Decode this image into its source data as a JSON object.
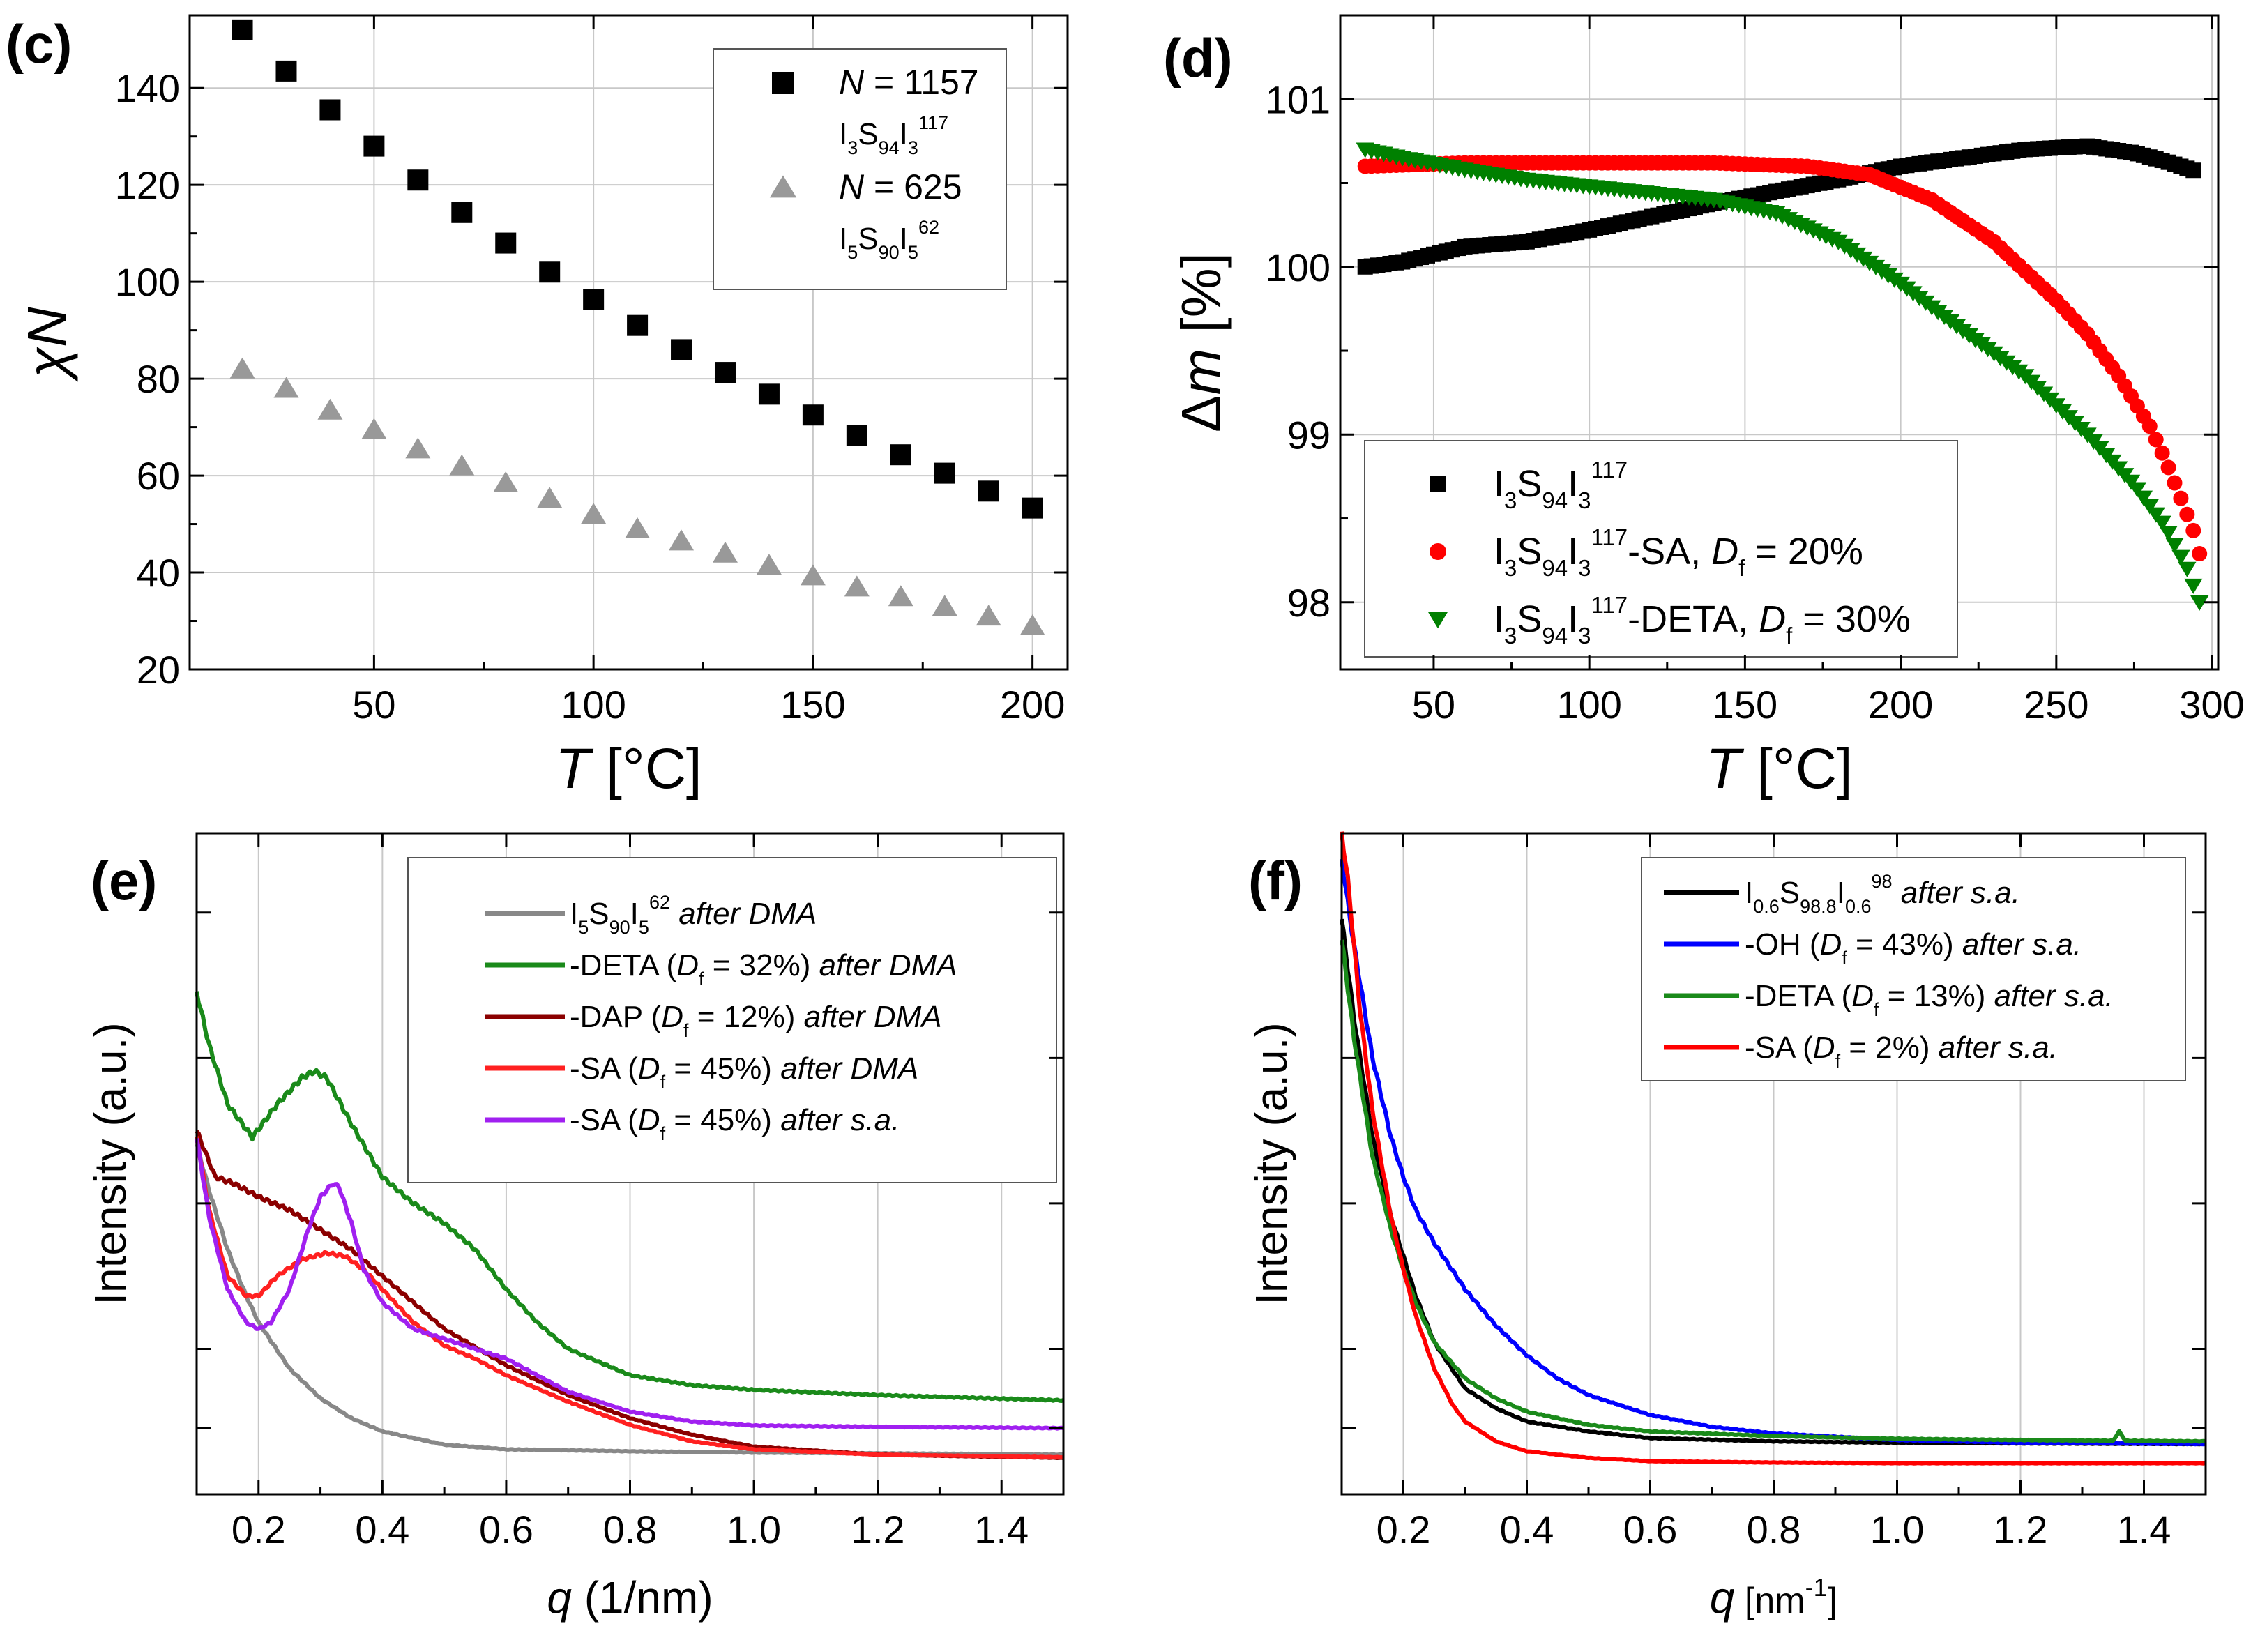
{
  "chart_data": [
    {
      "panel": "(c)",
      "type": "scatter",
      "xlabel": "T [°C]",
      "ylabel": "χN",
      "xlim": [
        8,
        208
      ],
      "ylim": [
        20,
        155
      ],
      "xticks": [
        50,
        100,
        150,
        200
      ],
      "yticks": [
        20,
        40,
        60,
        80,
        100,
        120,
        140
      ],
      "grid": true,
      "legend_position": "top-right",
      "series": [
        {
          "name": "N = 1157",
          "sub": "I3S94I3 117",
          "marker": "square",
          "color": "#000000",
          "x": [
            20,
            30,
            40,
            50,
            60,
            70,
            80,
            90,
            100,
            110,
            120,
            130,
            140,
            150,
            160,
            170,
            180,
            190,
            200
          ],
          "y": [
            152,
            143.5,
            135.5,
            128,
            121,
            114.3,
            108,
            102,
            96.3,
            91,
            86,
            81.3,
            76.8,
            72.5,
            68.3,
            64.3,
            60.5,
            56.8,
            53.3
          ]
        },
        {
          "name": "N = 625",
          "sub": "I5S90I5 62",
          "marker": "triangle",
          "color": "#999999",
          "x": [
            20,
            30,
            40,
            50,
            60,
            70,
            80,
            90,
            100,
            110,
            120,
            130,
            140,
            150,
            160,
            170,
            180,
            190,
            200
          ],
          "y": [
            82,
            78,
            73.5,
            69.5,
            65.5,
            62,
            58.5,
            55.3,
            52,
            49,
            46.5,
            44,
            41.5,
            39.3,
            37,
            35,
            33,
            31,
            29
          ]
        }
      ],
      "legend": [
        {
          "label_parts": [
            "N",
            " = 1157"
          ],
          "chem": {
            "parts": [
              "I",
              "3",
              "S",
              "94",
              "I",
              "3"
            ],
            "sup": "117"
          }
        },
        {
          "label_parts": [
            "N",
            " = 625"
          ],
          "chem": {
            "parts": [
              "I",
              "5",
              "S",
              "90",
              "I",
              "5"
            ],
            "sup": "62"
          }
        }
      ]
    },
    {
      "panel": "(d)",
      "type": "scatter",
      "xlabel": "T [°C]",
      "ylabel": "Δm [%]",
      "xlim": [
        20,
        302
      ],
      "ylim": [
        97.6,
        101.5
      ],
      "xticks": [
        50,
        100,
        150,
        200,
        250,
        300
      ],
      "yticks": [
        98,
        99,
        100,
        101
      ],
      "grid": true,
      "legend_position": "bottom-left",
      "series": [
        {
          "name": "I3S94I3 117",
          "marker": "square",
          "color": "#000000",
          "x": [
            28,
            40,
            60,
            80,
            100,
            120,
            140,
            160,
            180,
            200,
            220,
            240,
            260,
            275,
            285,
            295
          ],
          "y": [
            100.0,
            100.03,
            100.12,
            100.15,
            100.22,
            100.3,
            100.38,
            100.45,
            100.52,
            100.6,
            100.65,
            100.7,
            100.72,
            100.68,
            100.63,
            100.57
          ]
        },
        {
          "name": "I3S94I3 117-SA, Df = 20%",
          "marker": "circle",
          "color": "#ff0000",
          "x": [
            28,
            60,
            100,
            140,
            170,
            190,
            210,
            230,
            250,
            260,
            270,
            280,
            285,
            290,
            295,
            297
          ],
          "y": [
            100.6,
            100.62,
            100.62,
            100.62,
            100.6,
            100.55,
            100.4,
            100.15,
            99.8,
            99.6,
            99.35,
            99.05,
            98.85,
            98.62,
            98.38,
            98.2
          ]
        },
        {
          "name": "I3S94I3 117-DETA, Df = 30%",
          "marker": "triangle-down",
          "color": "#008000",
          "x": [
            28,
            40,
            60,
            80,
            100,
            120,
            140,
            160,
            180,
            200,
            220,
            240,
            260,
            275,
            285,
            292,
            297
          ],
          "y": [
            100.7,
            100.65,
            100.58,
            100.52,
            100.48,
            100.44,
            100.4,
            100.32,
            100.15,
            99.9,
            99.62,
            99.35,
            99.0,
            98.7,
            98.45,
            98.2,
            97.95
          ]
        }
      ],
      "legend": [
        {
          "chem": {
            "parts": [
              "I",
              "3",
              "S",
              "94",
              "I",
              "3"
            ],
            "sup": "117"
          },
          "suffix": "",
          "df_label": "",
          "df_value": ""
        },
        {
          "chem": {
            "parts": [
              "I",
              "3",
              "S",
              "94",
              "I",
              "3"
            ],
            "sup": "117"
          },
          "suffix": "-SA, ",
          "df_label": "D",
          "df_sub": "f",
          "df_value": " = 20%"
        },
        {
          "chem": {
            "parts": [
              "I",
              "3",
              "S",
              "94",
              "I",
              "3"
            ],
            "sup": "117"
          },
          "suffix": "-DETA, ",
          "df_label": "D",
          "df_sub": "f",
          "df_value": " = 30%"
        }
      ]
    },
    {
      "panel": "(e)",
      "type": "line",
      "xlabel": "q (1/nm)",
      "ylabel": "Intensity (a.u.)",
      "xlim": [
        0.1,
        1.5
      ],
      "ylim": [
        0,
        10
      ],
      "ylog": true,
      "xticks": [
        0.2,
        0.4,
        0.6,
        0.8,
        1.0,
        1.2,
        1.4
      ],
      "xtick_labels": [
        "0.2",
        "0.4",
        "0.6",
        "0.8",
        "1.0",
        "1.2",
        "1.4"
      ],
      "grid": true,
      "legend_position": "top-right",
      "series": [
        {
          "name": "I5S90I5 62 after DMA",
          "color": "#888888",
          "x": [
            0.1,
            0.12,
            0.15,
            0.18,
            0.2,
            0.25,
            0.3,
            0.35,
            0.4,
            0.5,
            0.6,
            0.8,
            1.0,
            1.2,
            1.5
          ],
          "y": [
            5.3,
            4.6,
            3.7,
            3.0,
            2.6,
            1.9,
            1.45,
            1.15,
            0.95,
            0.75,
            0.68,
            0.65,
            0.63,
            0.62,
            0.6
          ]
        },
        {
          "name": "-DETA (Df = 32%) after DMA",
          "color": "#1a8a1a",
          "x": [
            0.1,
            0.12,
            0.15,
            0.19,
            0.23,
            0.27,
            0.29,
            0.31,
            0.35,
            0.4,
            0.45,
            0.5,
            0.55,
            0.6,
            0.65,
            0.7,
            0.8,
            0.9,
            1.0,
            1.2,
            1.5
          ],
          "y": [
            7.6,
            6.8,
            5.9,
            5.4,
            5.9,
            6.3,
            6.4,
            6.3,
            5.6,
            4.8,
            4.4,
            4.1,
            3.7,
            3.1,
            2.6,
            2.2,
            1.8,
            1.65,
            1.58,
            1.5,
            1.42
          ]
        },
        {
          "name": "-DAP (Df = 12%) after DMA",
          "color": "#8b0000",
          "x": [
            0.1,
            0.13,
            0.16,
            0.2,
            0.25,
            0.3,
            0.35,
            0.4,
            0.45,
            0.5,
            0.6,
            0.7,
            0.8,
            0.9,
            1.0,
            1.2,
            1.5
          ],
          "y": [
            5.5,
            4.8,
            4.7,
            4.5,
            4.3,
            4.0,
            3.7,
            3.3,
            2.9,
            2.5,
            1.95,
            1.5,
            1.15,
            0.9,
            0.72,
            0.6,
            0.55
          ]
        },
        {
          "name": "-SA (Df = 45%) after DMA",
          "color": "#ff2020",
          "x": [
            0.1,
            0.12,
            0.15,
            0.18,
            0.2,
            0.23,
            0.27,
            0.31,
            0.34,
            0.37,
            0.4,
            0.45,
            0.5,
            0.55,
            0.6,
            0.7,
            0.8,
            0.9,
            1.0,
            1.2,
            1.5
          ],
          "y": [
            5.4,
            4.3,
            3.3,
            3.0,
            3.0,
            3.3,
            3.55,
            3.65,
            3.6,
            3.4,
            3.1,
            2.6,
            2.25,
            2.05,
            1.8,
            1.4,
            1.05,
            0.8,
            0.68,
            0.6,
            0.56
          ]
        },
        {
          "name": "-SA (Df = 45%) after s.a.",
          "color": "#a020f0",
          "x": [
            0.1,
            0.12,
            0.15,
            0.18,
            0.2,
            0.22,
            0.25,
            0.28,
            0.3,
            0.32,
            0.33,
            0.35,
            0.37,
            0.4,
            0.45,
            0.5,
            0.55,
            0.6,
            0.65,
            0.7,
            0.8,
            0.9,
            1.0,
            1.2,
            1.5
          ],
          "y": [
            5.4,
            4.2,
            3.1,
            2.6,
            2.5,
            2.6,
            3.1,
            4.0,
            4.5,
            4.7,
            4.65,
            4.1,
            3.4,
            2.9,
            2.5,
            2.35,
            2.2,
            2.05,
            1.8,
            1.55,
            1.25,
            1.1,
            1.04,
            1.02,
            1.0
          ]
        }
      ],
      "legend": [
        {
          "chem": {
            "parts": [
              "I",
              "5",
              "S",
              "90",
              "I",
              "5"
            ],
            "sup": "62"
          },
          "prefix": "",
          "df": "",
          "note": " after DMA"
        },
        {
          "prefix": "-DETA (",
          "df_label": "D",
          "df_sub": "f",
          "df_value": " = 32%)",
          "note": " after DMA"
        },
        {
          "prefix": "-DAP (",
          "df_label": "D",
          "df_sub": "f",
          "df_value": " = 12%)",
          "note": " after DMA"
        },
        {
          "prefix": "-SA (",
          "df_label": "D",
          "df_sub": "f",
          "df_value": " = 45%)",
          "note": " after DMA"
        },
        {
          "prefix": "-SA (",
          "df_label": "D",
          "df_sub": "f",
          "df_value": " = 45%)",
          "note": " after s.a."
        }
      ]
    },
    {
      "panel": "(f)",
      "type": "line",
      "xlabel": "q [nm",
      "xlabel_sup": "-1",
      "xlabel_end": "]",
      "ylabel": "Intensity (a.u.)",
      "xlim": [
        0.1,
        1.5
      ],
      "ylim": [
        0,
        10
      ],
      "ylog": true,
      "xticks": [
        0.2,
        0.4,
        0.6,
        0.8,
        1.0,
        1.2,
        1.4
      ],
      "xtick_labels": [
        "0.2",
        "0.4",
        "0.6",
        "0.8",
        "1.0",
        "1.2",
        "1.4"
      ],
      "grid": true,
      "legend_position": "top-right",
      "series": [
        {
          "name": "I0.6S98.8I0.6 98 after s.a.",
          "color": "#000000",
          "x": [
            0.1,
            0.12,
            0.15,
            0.18,
            0.2,
            0.22,
            0.25,
            0.3,
            0.35,
            0.4,
            0.5,
            0.6,
            0.8,
            1.0,
            1.2,
            1.5
          ],
          "y": [
            8.7,
            7.2,
            5.4,
            4.2,
            3.6,
            3.0,
            2.3,
            1.6,
            1.3,
            1.1,
            0.95,
            0.85,
            0.8,
            0.78,
            0.77,
            0.76
          ]
        },
        {
          "name": "-OH (Df = 43%) after s.a.",
          "color": "#0000ff",
          "x": [
            0.1,
            0.12,
            0.15,
            0.18,
            0.2,
            0.22,
            0.25,
            0.3,
            0.35,
            0.4,
            0.45,
            0.5,
            0.6,
            0.7,
            0.8,
            1.0,
            1.2,
            1.5
          ],
          "y": [
            9.6,
            8.3,
            6.6,
            5.4,
            4.8,
            4.3,
            3.8,
            3.1,
            2.55,
            2.1,
            1.75,
            1.5,
            1.2,
            1.02,
            0.92,
            0.82,
            0.78,
            0.76
          ]
        },
        {
          "name": "-DETA (Df = 13%) after s.a.",
          "color": "#1a8a1a",
          "x": [
            0.1,
            0.12,
            0.15,
            0.18,
            0.2,
            0.22,
            0.25,
            0.3,
            0.35,
            0.4,
            0.5,
            0.6,
            0.8,
            1.0,
            1.2,
            1.35,
            1.36,
            1.37,
            1.5
          ],
          "y": [
            8.4,
            6.9,
            5.1,
            4.0,
            3.4,
            2.9,
            2.3,
            1.75,
            1.45,
            1.25,
            1.05,
            0.95,
            0.88,
            0.84,
            0.82,
            0.81,
            0.95,
            0.81,
            0.8
          ]
        },
        {
          "name": "-SA (Df = 2%) after s.a.",
          "color": "#ff0000",
          "x": [
            0.1,
            0.11,
            0.13,
            0.15,
            0.18,
            0.2,
            0.22,
            0.25,
            0.28,
            0.3,
            0.35,
            0.4,
            0.5,
            0.6,
            0.8,
            1.0,
            1.2,
            1.5
          ],
          "y": [
            10.0,
            9.3,
            7.3,
            5.8,
            4.2,
            3.4,
            2.7,
            1.9,
            1.35,
            1.1,
            0.8,
            0.65,
            0.55,
            0.5,
            0.48,
            0.47,
            0.47,
            0.47
          ]
        }
      ],
      "legend": [
        {
          "chem": {
            "parts": [
              "I",
              "0.6",
              "S",
              "98.8",
              "I",
              "0.6"
            ],
            "sup": "98"
          },
          "prefix": "",
          "note": " after s.a."
        },
        {
          "prefix": "-OH (",
          "df_label": "D",
          "df_sub": "f",
          "df_value": " = 43%)",
          "note": " after s.a."
        },
        {
          "prefix": "-DETA (",
          "df_label": "D",
          "df_sub": "f",
          "df_value": " = 13%)",
          "note": " after s.a."
        },
        {
          "prefix": "-SA (",
          "df_label": "D",
          "df_sub": "f",
          "df_value": " = 2%)",
          "note": " after s.a."
        }
      ]
    }
  ]
}
